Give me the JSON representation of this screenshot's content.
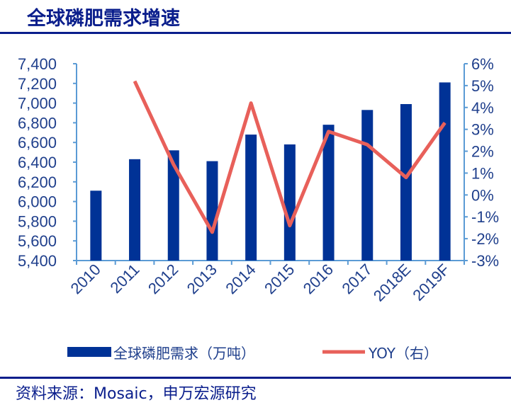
{
  "title": "全球磷肥需求增速",
  "source": "资料来源：Mosaic，申万宏源研究",
  "colors": {
    "bar": "#003296",
    "line": "#e8605a",
    "axis": "#5b9bd5"
  },
  "chart_data": {
    "type": "bar+line",
    "title": "全球磷肥需求增速",
    "categories": [
      "2010",
      "2011",
      "2012",
      "2013",
      "2014",
      "2015",
      "2016",
      "2017",
      "2018E",
      "2019F"
    ],
    "series": [
      {
        "name": "全球磷肥需求（万吨）",
        "type": "bar",
        "axis": "left",
        "values": [
          6110,
          6430,
          6520,
          6410,
          6680,
          6580,
          6780,
          6930,
          6990,
          7210
        ]
      },
      {
        "name": "YOY（右）",
        "type": "line",
        "axis": "right",
        "values": [
          null,
          5.2,
          1.4,
          -1.7,
          4.2,
          -1.4,
          2.9,
          2.3,
          0.8,
          3.3
        ]
      }
    ],
    "yleft": {
      "range": [
        5400,
        7400
      ],
      "step": 200,
      "ticks": [
        "5,400",
        "5,600",
        "5,800",
        "6,000",
        "6,200",
        "6,400",
        "6,600",
        "6,800",
        "7,000",
        "7,200",
        "7,400"
      ]
    },
    "yright": {
      "range": [
        -3,
        6
      ],
      "step": 1,
      "ticks": [
        "-3%",
        "-2%",
        "-1%",
        "0%",
        "1%",
        "2%",
        "3%",
        "4%",
        "5%",
        "6%"
      ]
    },
    "legend": "bottom"
  }
}
